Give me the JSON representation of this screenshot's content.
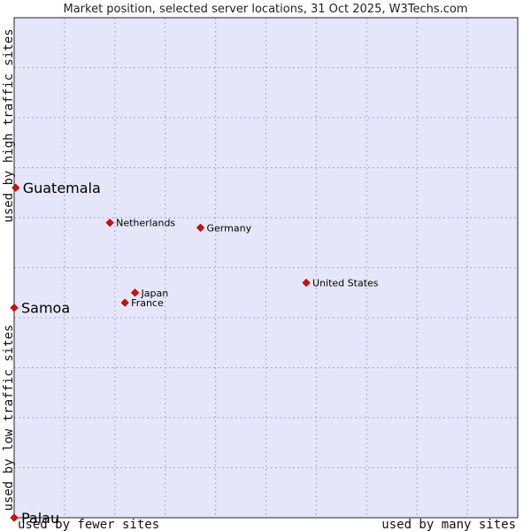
{
  "chart_data": {
    "type": "scatter",
    "title": "Market position, selected server locations, 31 Oct 2025, W3Techs.com",
    "xlabel_low": "used by fewer sites",
    "xlabel_high": "used by many sites",
    "ylabel_low": "used by low traffic sites",
    "ylabel_high": "used by high traffic sites",
    "xlim": [
      0,
      10
    ],
    "ylim": [
      0,
      10
    ],
    "grid": true,
    "colors": {
      "plot_bg": "#e6e6fa",
      "grid": "#a8a8c8",
      "border": "#222222",
      "point_fill": "#ee0000",
      "point_stroke": "#990000"
    },
    "points": [
      {
        "label": "Guatemala",
        "x": 0.03,
        "y": 6.6,
        "size": "large"
      },
      {
        "label": "Samoa",
        "x": 0.0,
        "y": 4.2,
        "size": "large"
      },
      {
        "label": "Palau",
        "x": 0.0,
        "y": 0.0,
        "size": "large"
      },
      {
        "label": "Netherlands",
        "x": 1.9,
        "y": 5.9,
        "size": "small"
      },
      {
        "label": "Germany",
        "x": 3.7,
        "y": 5.8,
        "size": "small"
      },
      {
        "label": "United States",
        "x": 5.8,
        "y": 4.7,
        "size": "small"
      },
      {
        "label": "Japan",
        "x": 2.4,
        "y": 4.5,
        "size": "small"
      },
      {
        "label": "France",
        "x": 2.2,
        "y": 4.3,
        "size": "small"
      }
    ]
  }
}
